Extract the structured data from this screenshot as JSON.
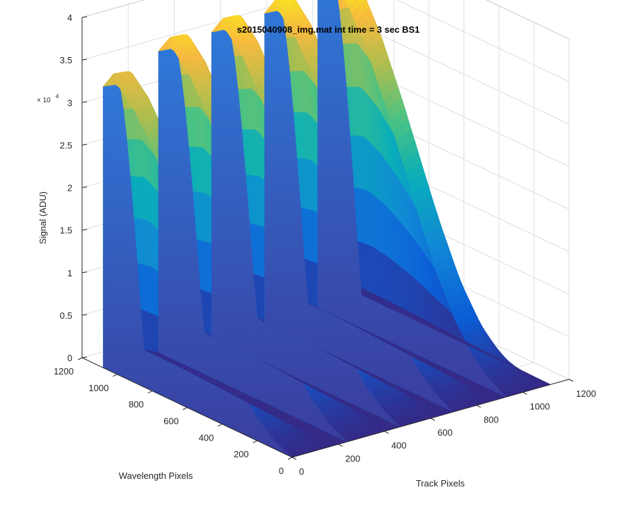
{
  "chart_data": {
    "type": "surface3d",
    "title": "s2015040908_img.mat int time = 3 sec   BS1",
    "xlabel": "Track Pixels",
    "ylabel": "Wavelength Pixels",
    "zlabel": "Signal (ADU)",
    "z_exponent_label": "× 10",
    "z_exponent_power": "4",
    "xlim": [
      0,
      1200
    ],
    "ylim": [
      0,
      1200
    ],
    "zlim": [
      0,
      40000
    ],
    "x_ticks": [
      "0",
      "200",
      "400",
      "600",
      "800",
      "1000",
      "1200"
    ],
    "y_ticks": [
      "0",
      "200",
      "400",
      "600",
      "800",
      "1000",
      "1200"
    ],
    "z_ticks": [
      "0",
      "0.5",
      "1",
      "1.5",
      "2",
      "2.5",
      "3",
      "3.5",
      "4"
    ],
    "grid": true,
    "colormap": "parula",
    "tracks": [
      {
        "name": "",
        "x_start": 0,
        "x_end": 180,
        "peak_signal": 35500
      },
      {
        "name": "",
        "x_start": 240,
        "x_end": 440,
        "peak_signal": 38000
      },
      {
        "name": "",
        "x_start": 470,
        "x_end": 670,
        "peak_signal": 38500
      },
      {
        "name": "",
        "x_start": 700,
        "x_end": 890,
        "peak_signal": 39000
      },
      {
        "name": "",
        "x_start": 930,
        "x_end": 1120,
        "peak_signal": 41000
      }
    ],
    "signal_profile_vs_wavelength": {
      "wavelength": [
        0,
        100,
        200,
        300,
        400,
        500,
        600,
        700,
        800,
        900,
        1000,
        1080
      ],
      "relative_signal": [
        0.0,
        0.03,
        0.08,
        0.16,
        0.27,
        0.41,
        0.56,
        0.71,
        0.84,
        0.94,
        1.0,
        0.97
      ]
    }
  }
}
